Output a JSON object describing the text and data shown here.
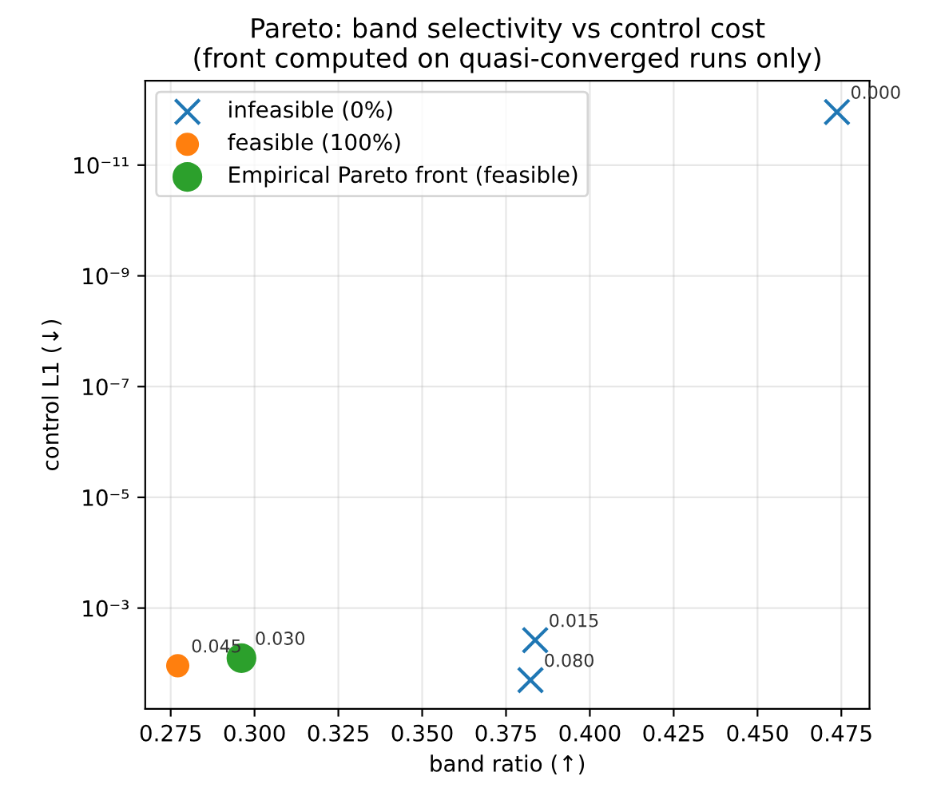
{
  "chart_data": {
    "type": "scatter",
    "title": "Pareto: band selectivity vs control cost\n(front computed on quasi-converged runs only)",
    "xlabel": "band ratio (↑)",
    "ylabel": "control L1 (↓)",
    "log": "y",
    "xlim": [
      0.2674,
      0.4834
    ],
    "ylim": [
      0.066,
      3e-13
    ],
    "xticks": [
      {
        "value": 0.275,
        "label": "0.275"
      },
      {
        "value": 0.3,
        "label": "0.300"
      },
      {
        "value": 0.325,
        "label": "0.325"
      },
      {
        "value": 0.35,
        "label": "0.350"
      },
      {
        "value": 0.375,
        "label": "0.375"
      },
      {
        "value": 0.4,
        "label": "0.400"
      },
      {
        "value": 0.425,
        "label": "0.425"
      },
      {
        "value": 0.45,
        "label": "0.450"
      },
      {
        "value": 0.475,
        "label": "0.475"
      }
    ],
    "yticks": [
      {
        "value": 1e-11,
        "label": "10⁻¹¹"
      },
      {
        "value": 1e-09,
        "label": "10⁻⁹"
      },
      {
        "value": 1e-07,
        "label": "10⁻⁷"
      },
      {
        "value": 1e-05,
        "label": "10⁻⁵"
      },
      {
        "value": 0.001,
        "label": "10⁻³"
      }
    ],
    "grid": true,
    "legend": "top left",
    "series": [
      {
        "name": "infeasible (0%)",
        "color": "#1f77b4",
        "marker": "cross",
        "x": [
          0.4737,
          0.3837,
          0.3823
        ],
        "values": [
          1.1e-12,
          0.0038,
          0.02
        ]
      },
      {
        "name": "feasible (100%)",
        "color": "#ff7f0e",
        "marker": "circle",
        "x": [
          0.2771
        ],
        "values": [
          0.011
        ]
      },
      {
        "name": "Empirical Pareto front (feasible)",
        "color": "#2ca02c",
        "marker": "circle",
        "x": [
          0.2961
        ],
        "values": [
          0.008
        ]
      }
    ],
    "annotations": [
      {
        "text": "0.000",
        "x": 0.4737,
        "y": 1.1e-12
      },
      {
        "text": "0.015",
        "x": 0.3837,
        "y": 0.0038
      },
      {
        "text": "0.080",
        "x": 0.3823,
        "y": 0.02
      },
      {
        "text": "0.045",
        "x": 0.2771,
        "y": 0.011
      },
      {
        "text": "0.030",
        "x": 0.2961,
        "y": 0.008
      }
    ]
  }
}
